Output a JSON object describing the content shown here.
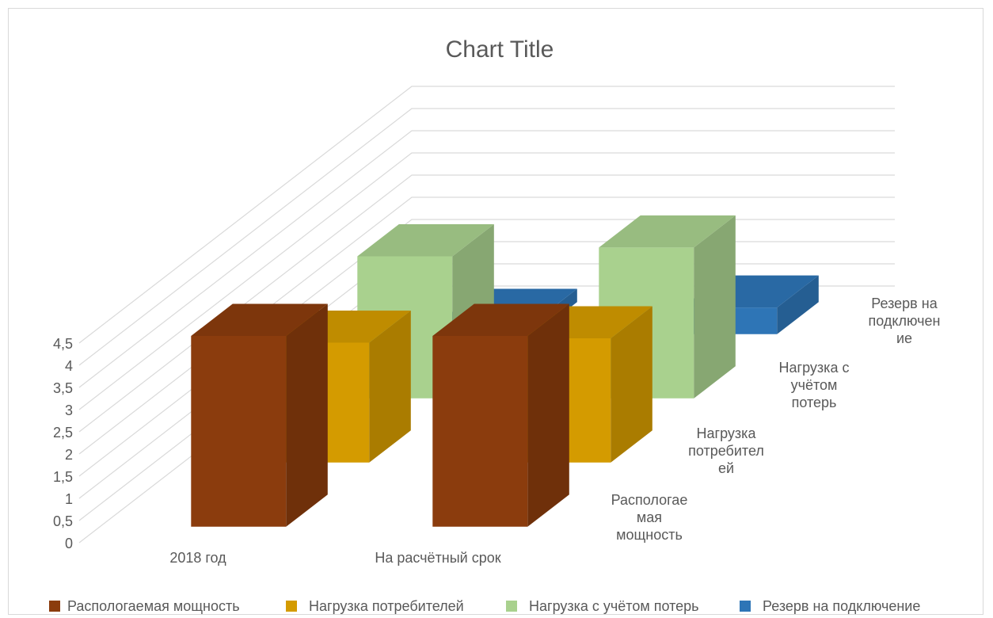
{
  "chart_data": {
    "type": "bar",
    "title": "Chart Title",
    "categories": [
      "2018 год",
      "На расчётный срок"
    ],
    "series": [
      {
        "name": "Распологаемая мощность",
        "values": [
          4.3,
          4.3
        ],
        "color": "#8b3c0d",
        "label_lines": [
          "Распологае",
          "мая",
          "мощность"
        ]
      },
      {
        "name": "Нагрузка потребителей",
        "values": [
          2.7,
          2.8
        ],
        "color": "#d49b00",
        "label_lines": [
          "Нагрузка",
          "потребител",
          "ей"
        ]
      },
      {
        "name": "Нагрузка с учётом потерь",
        "values": [
          3.2,
          3.4
        ],
        "color": "#a9d18e",
        "label_lines": [
          "Нагрузка с",
          "учётом",
          "потерь"
        ]
      },
      {
        "name": "Резерв на подключение",
        "values": [
          0.3,
          0.6
        ],
        "color": "#2e75b6",
        "label_lines": [
          "Резерв на",
          "подключен",
          "ие"
        ]
      }
    ],
    "y_ticks": [
      "0",
      "0,5",
      "1",
      "1,5",
      "2",
      "2,5",
      "3",
      "3,5",
      "4",
      "4,5"
    ],
    "ylim": [
      0,
      4.5
    ],
    "grid": true,
    "legend": "bottom"
  }
}
